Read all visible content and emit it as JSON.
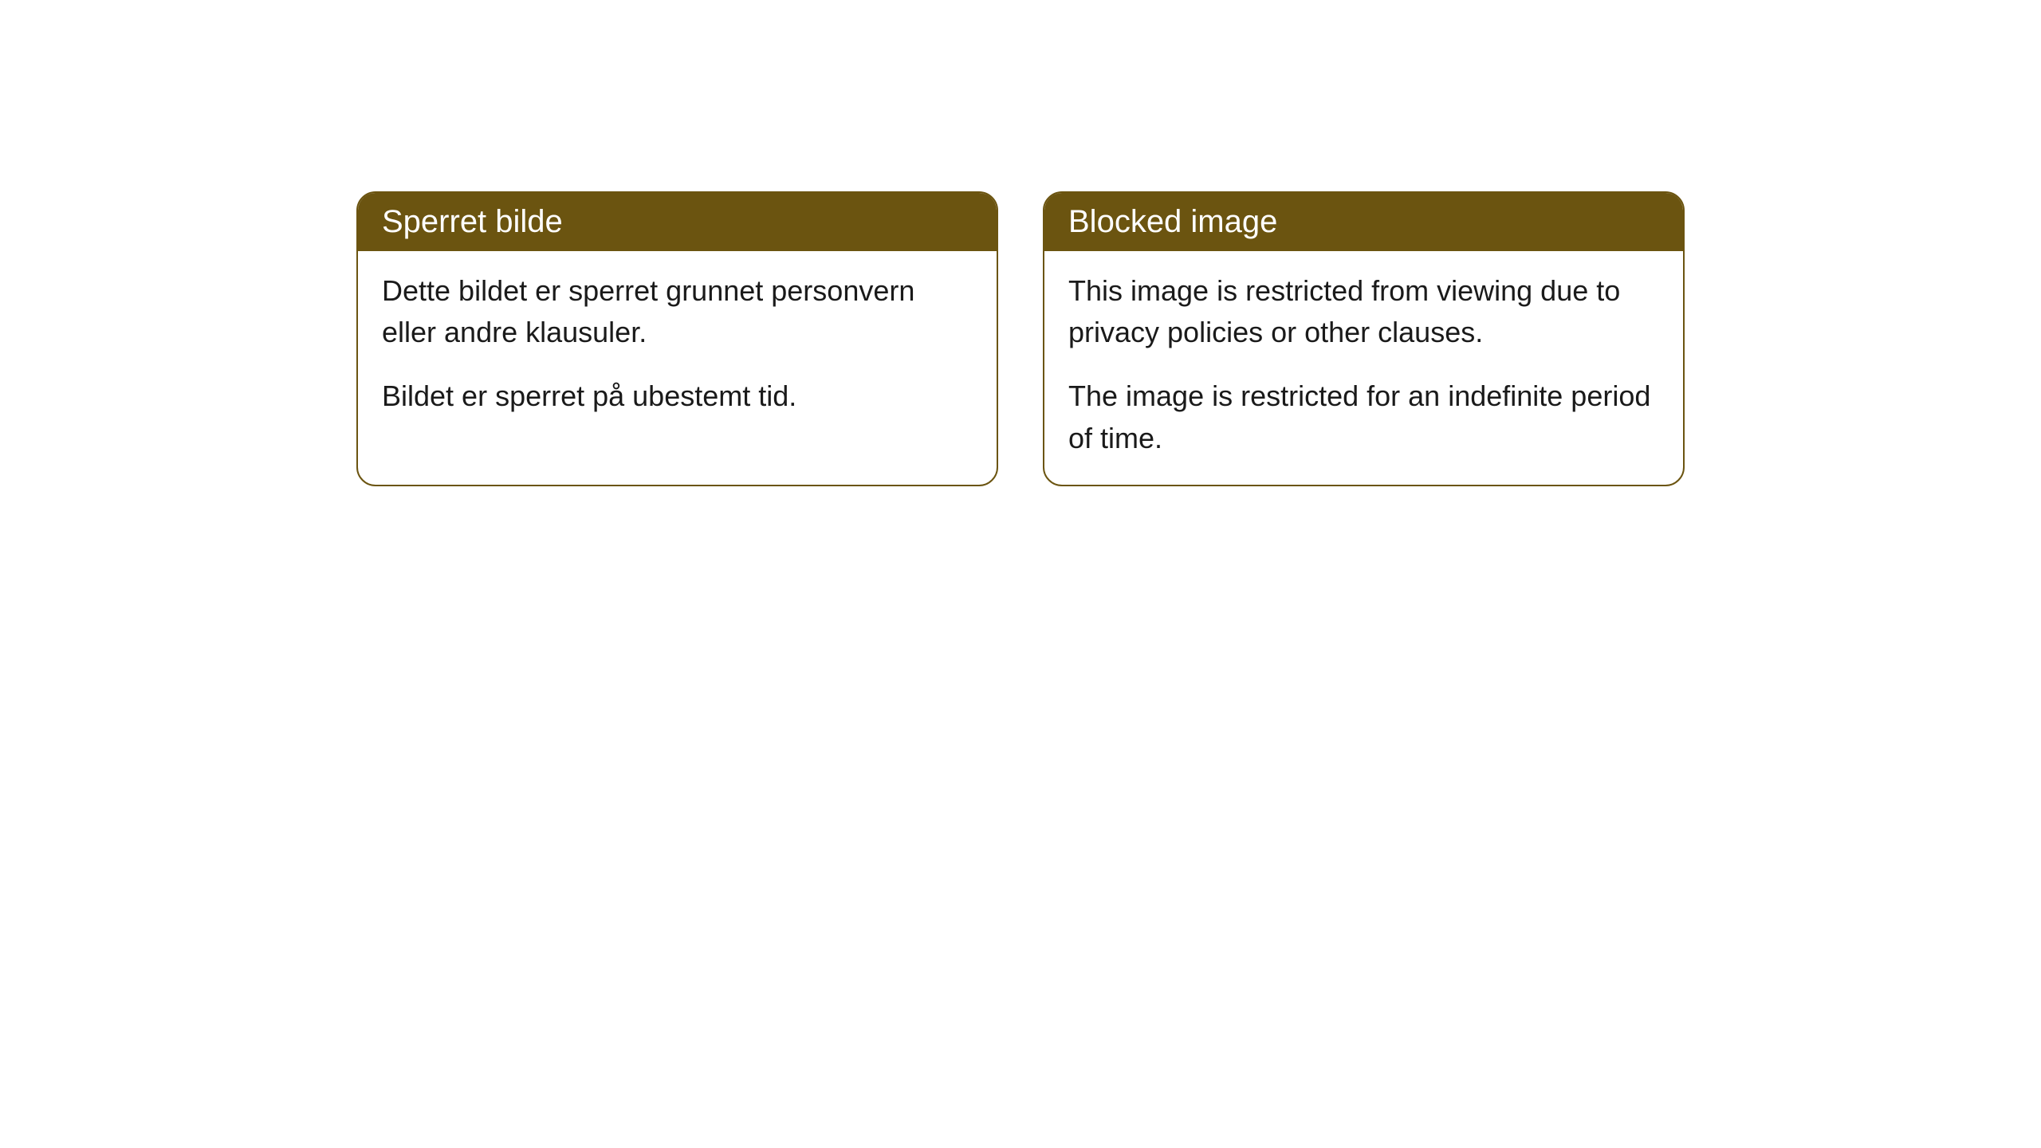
{
  "cards": [
    {
      "title": "Sperret bilde",
      "paragraph1": "Dette bildet er sperret grunnet personvern eller andre klausuler.",
      "paragraph2": "Bildet er sperret på ubestemt tid."
    },
    {
      "title": "Blocked image",
      "paragraph1": "This image is restricted from viewing due to privacy policies or other clauses.",
      "paragraph2": "The image is restricted for an indefinite period of time."
    }
  ],
  "style": {
    "header_background": "#6b5410",
    "header_text_color": "#ffffff",
    "border_color": "#6b5410",
    "body_text_color": "#1a1a1a",
    "page_background": "#ffffff",
    "border_radius": 24,
    "title_fontsize": 40,
    "body_fontsize": 36
  }
}
